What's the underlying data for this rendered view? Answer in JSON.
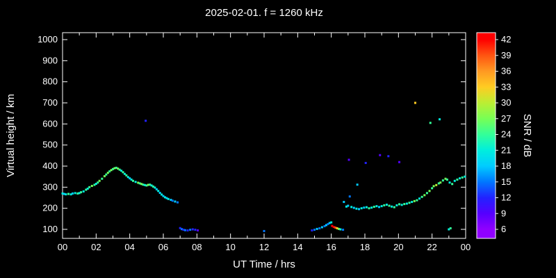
{
  "title": "2025-02-01. f = 1260 kHz",
  "axes": {
    "x_label": "UT Time / hrs",
    "y_label": "Virtual height / km",
    "cbar_label": "SNR / dB"
  },
  "colors": {
    "background": "#000000",
    "foreground": "#ffffff"
  },
  "chart_data": {
    "type": "scatter",
    "title": "2025-02-01. f = 1260 kHz",
    "xlabel": "UT Time / hrs",
    "ylabel": "Virtual height / km",
    "xlim": [
      0,
      24
    ],
    "ylim": [
      100,
      1000
    ],
    "grid": false,
    "x_ticks": [
      0,
      2,
      4,
      6,
      8,
      10,
      12,
      14,
      16,
      18,
      20,
      22,
      24
    ],
    "x_tick_labels": [
      "00",
      "02",
      "04",
      "06",
      "08",
      "10",
      "12",
      "14",
      "16",
      "18",
      "20",
      "22",
      "00"
    ],
    "y_ticks": [
      100,
      200,
      300,
      400,
      500,
      600,
      700,
      800,
      900,
      1000
    ],
    "colorbar": {
      "label": "SNR / dB",
      "ticks": [
        6,
        9,
        12,
        15,
        18,
        21,
        24,
        27,
        30,
        33,
        36,
        39,
        42
      ],
      "stops": [
        {
          "v": 6,
          "color": "#9000ff"
        },
        {
          "v": 9,
          "color": "#5500ff"
        },
        {
          "v": 12,
          "color": "#2222ff"
        },
        {
          "v": 15,
          "color": "#0077ff"
        },
        {
          "v": 18,
          "color": "#00ccff"
        },
        {
          "v": 21,
          "color": "#00eedd"
        },
        {
          "v": 24,
          "color": "#33ff99"
        },
        {
          "v": 27,
          "color": "#77ff55"
        },
        {
          "v": 30,
          "color": "#bbee33"
        },
        {
          "v": 33,
          "color": "#ffcc22"
        },
        {
          "v": 36,
          "color": "#ff9922"
        },
        {
          "v": 39,
          "color": "#ff5511"
        },
        {
          "v": 42,
          "color": "#ff0000"
        }
      ]
    },
    "points": [
      [
        0.0,
        270,
        21
      ],
      [
        0.1,
        268,
        18
      ],
      [
        0.2,
        266,
        21
      ],
      [
        0.35,
        268,
        24
      ],
      [
        0.5,
        266,
        21
      ],
      [
        0.6,
        270,
        18
      ],
      [
        0.75,
        272,
        21
      ],
      [
        0.9,
        270,
        24
      ],
      [
        1.0,
        272,
        21
      ],
      [
        1.1,
        276,
        24
      ],
      [
        1.25,
        280,
        21
      ],
      [
        1.4,
        288,
        24
      ],
      [
        1.5,
        293,
        21
      ],
      [
        1.6,
        300,
        24
      ],
      [
        1.75,
        306,
        27
      ],
      [
        1.9,
        311,
        24
      ],
      [
        2.0,
        316,
        21
      ],
      [
        2.1,
        322,
        24
      ],
      [
        2.2,
        330,
        27
      ],
      [
        2.35,
        340,
        24
      ],
      [
        2.5,
        352,
        27
      ],
      [
        2.6,
        360,
        24
      ],
      [
        2.7,
        368,
        27
      ],
      [
        2.8,
        375,
        24
      ],
      [
        2.9,
        381,
        27
      ],
      [
        3.0,
        386,
        24
      ],
      [
        3.1,
        390,
        27
      ],
      [
        3.2,
        392,
        24
      ],
      [
        3.3,
        388,
        27
      ],
      [
        3.4,
        383,
        24
      ],
      [
        3.5,
        378,
        21
      ],
      [
        3.6,
        371,
        24
      ],
      [
        3.7,
        363,
        21
      ],
      [
        3.8,
        356,
        24
      ],
      [
        3.9,
        348,
        21
      ],
      [
        4.0,
        342,
        18
      ],
      [
        4.1,
        336,
        21
      ],
      [
        4.2,
        330,
        24
      ],
      [
        4.35,
        325,
        21
      ],
      [
        4.5,
        321,
        27
      ],
      [
        4.6,
        318,
        24
      ],
      [
        4.7,
        315,
        27
      ],
      [
        4.8,
        312,
        24
      ],
      [
        4.9,
        310,
        21
      ],
      [
        4.95,
        615,
        12
      ],
      [
        5.0,
        308,
        24
      ],
      [
        5.1,
        311,
        27
      ],
      [
        5.2,
        312,
        24
      ],
      [
        5.3,
        308,
        21
      ],
      [
        5.4,
        303,
        24
      ],
      [
        5.5,
        298,
        21
      ],
      [
        5.6,
        290,
        18
      ],
      [
        5.7,
        282,
        21
      ],
      [
        5.8,
        273,
        18
      ],
      [
        5.9,
        265,
        21
      ],
      [
        6.0,
        258,
        18
      ],
      [
        6.1,
        252,
        21
      ],
      [
        6.2,
        248,
        18
      ],
      [
        6.3,
        244,
        21
      ],
      [
        6.45,
        240,
        18
      ],
      [
        6.55,
        236,
        15
      ],
      [
        6.7,
        232,
        18
      ],
      [
        6.85,
        228,
        15
      ],
      [
        7.0,
        106,
        12
      ],
      [
        7.1,
        101,
        15
      ],
      [
        7.2,
        98,
        12
      ],
      [
        7.3,
        96,
        15
      ],
      [
        7.45,
        95,
        12
      ],
      [
        7.6,
        98,
        15
      ],
      [
        7.75,
        100,
        12
      ],
      [
        7.9,
        98,
        12
      ],
      [
        8.05,
        95,
        9
      ],
      [
        12.0,
        92,
        15
      ],
      [
        14.85,
        95,
        12
      ],
      [
        15.0,
        98,
        15
      ],
      [
        15.15,
        102,
        18
      ],
      [
        15.3,
        105,
        15
      ],
      [
        15.45,
        110,
        18
      ],
      [
        15.6,
        115,
        15
      ],
      [
        15.7,
        120,
        18
      ],
      [
        15.8,
        125,
        15
      ],
      [
        15.9,
        130,
        18
      ],
      [
        16.0,
        133,
        21
      ],
      [
        16.05,
        116,
        42
      ],
      [
        16.15,
        111,
        42
      ],
      [
        16.25,
        108,
        39
      ],
      [
        16.35,
        105,
        33
      ],
      [
        16.45,
        102,
        27
      ],
      [
        16.55,
        100,
        21
      ],
      [
        16.7,
        98,
        15
      ],
      [
        16.75,
        230,
        18
      ],
      [
        16.9,
        208,
        21
      ],
      [
        17.0,
        212,
        18
      ],
      [
        17.05,
        430,
        9
      ],
      [
        17.1,
        256,
        15
      ],
      [
        17.2,
        206,
        21
      ],
      [
        17.35,
        202,
        18
      ],
      [
        17.5,
        198,
        21
      ],
      [
        17.55,
        312,
        18
      ],
      [
        17.65,
        196,
        18
      ],
      [
        17.8,
        200,
        21
      ],
      [
        17.95,
        203,
        18
      ],
      [
        18.05,
        415,
        12
      ],
      [
        18.1,
        205,
        21
      ],
      [
        18.25,
        200,
        24
      ],
      [
        18.4,
        203,
        21
      ],
      [
        18.55,
        207,
        24
      ],
      [
        18.7,
        210,
        21
      ],
      [
        18.85,
        206,
        18
      ],
      [
        18.9,
        452,
        9
      ],
      [
        19.0,
        210,
        21
      ],
      [
        19.15,
        214,
        24
      ],
      [
        19.3,
        217,
        21
      ],
      [
        19.4,
        447,
        12
      ],
      [
        19.45,
        212,
        24
      ],
      [
        19.6,
        208,
        21
      ],
      [
        19.75,
        205,
        24
      ],
      [
        19.9,
        214,
        21
      ],
      [
        20.05,
        419,
        9
      ],
      [
        20.05,
        219,
        24
      ],
      [
        20.2,
        216,
        21
      ],
      [
        20.35,
        220,
        24
      ],
      [
        20.5,
        222,
        21
      ],
      [
        20.65,
        226,
        24
      ],
      [
        20.8,
        230,
        21
      ],
      [
        20.95,
        234,
        27
      ],
      [
        21.0,
        700,
        33
      ],
      [
        21.1,
        238,
        24
      ],
      [
        21.25,
        246,
        21
      ],
      [
        21.4,
        254,
        24
      ],
      [
        21.55,
        262,
        27
      ],
      [
        21.7,
        272,
        24
      ],
      [
        21.85,
        282,
        27
      ],
      [
        21.9,
        605,
        24
      ],
      [
        22.0,
        295,
        24
      ],
      [
        22.1,
        305,
        27
      ],
      [
        22.25,
        310,
        30
      ],
      [
        22.4,
        318,
        24
      ],
      [
        22.45,
        622,
        21
      ],
      [
        22.5,
        322,
        27
      ],
      [
        22.65,
        332,
        24
      ],
      [
        22.8,
        340,
        27
      ],
      [
        22.9,
        336,
        24
      ],
      [
        23.0,
        100,
        21
      ],
      [
        23.05,
        322,
        21
      ],
      [
        23.1,
        105,
        24
      ],
      [
        23.2,
        315,
        24
      ],
      [
        23.35,
        330,
        21
      ],
      [
        23.5,
        336,
        24
      ],
      [
        23.65,
        342,
        21
      ],
      [
        23.8,
        346,
        24
      ],
      [
        23.95,
        350,
        21
      ]
    ]
  }
}
